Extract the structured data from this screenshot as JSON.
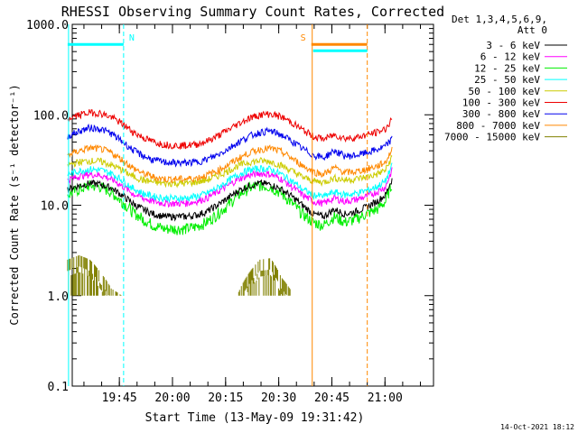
{
  "chart_data": {
    "type": "line",
    "title": "RHESSI Observing Summary Count Rates, Corrected",
    "xlabel": "Start Time (13-May-09 19:31:42)",
    "ylabel": "Corrected Count Rate (s⁻¹ detector⁻¹)",
    "yscale": "log",
    "ylim": [
      0.1,
      1000
    ],
    "xlim_min": [
      0,
      102
    ],
    "xlim_labels": [
      "19:31:42",
      "21:13:42"
    ],
    "xticks": [
      {
        "min": 13.3,
        "label": "19:45"
      },
      {
        "min": 28.3,
        "label": "20:00"
      },
      {
        "min": 43.3,
        "label": "20:15"
      },
      {
        "min": 58.3,
        "label": "20:30"
      },
      {
        "min": 73.3,
        "label": "20:45"
      },
      {
        "min": 88.3,
        "label": "21:00"
      }
    ],
    "yticks": [
      {
        "value": 1000,
        "label": "1000.0"
      },
      {
        "value": 100,
        "label": "100.0"
      },
      {
        "value": 10,
        "label": "10.0"
      },
      {
        "value": 1,
        "label": "1.0"
      },
      {
        "value": 0.1,
        "label": "0.1"
      }
    ],
    "legend_header": [
      "Det 1,3,4,5,6,9,",
      "Att 0"
    ],
    "legend_position": "right",
    "time_min": [
      -1.3,
      2,
      5,
      8,
      11,
      14,
      17,
      20,
      23,
      26,
      29,
      32,
      35,
      38,
      41,
      44,
      47,
      50,
      53,
      56,
      59,
      62,
      65,
      68,
      71,
      74,
      77,
      80,
      83,
      86,
      88.5,
      90.5
    ],
    "series": [
      {
        "name": "3 - 6 keV",
        "color": "#000000",
        "values": [
          15,
          16.5,
          17.5,
          17,
          15.5,
          13,
          10.5,
          9,
          8,
          7.5,
          7.5,
          7.5,
          7.8,
          8.5,
          10,
          12,
          14.5,
          16.5,
          17.5,
          17,
          15,
          12.5,
          10,
          8,
          7.5,
          9,
          8,
          8.5,
          9.5,
          11,
          13,
          20
        ]
      },
      {
        "name": "6 - 12 keV",
        "color": "#ff00ff",
        "values": [
          19,
          21,
          22,
          21.5,
          19.5,
          16.5,
          13.5,
          12,
          11,
          10.5,
          10.5,
          10.5,
          11,
          12,
          14,
          16.5,
          19.5,
          21.5,
          22.5,
          22,
          19.5,
          16,
          13,
          11,
          10.5,
          12,
          11,
          11.5,
          12.5,
          14,
          16,
          25
        ]
      },
      {
        "name": "12 - 25 keV",
        "color": "#00ee00",
        "values": [
          13,
          15,
          16.5,
          16,
          14,
          11,
          8.5,
          7,
          6,
          5.5,
          5.5,
          5.5,
          5.8,
          6.5,
          8,
          10,
          13,
          15.5,
          16.5,
          16,
          13.5,
          10.5,
          8,
          6.5,
          6,
          7.5,
          6.5,
          7,
          8,
          9,
          11,
          18
        ]
      },
      {
        "name": "25 - 50 keV",
        "color": "#00ffff",
        "values": [
          22,
          24,
          25,
          24.5,
          22.5,
          19,
          15.5,
          13.5,
          12.5,
          12,
          12,
          12,
          12.5,
          13.5,
          15.5,
          18.5,
          22,
          24.5,
          25.5,
          25,
          22,
          18.5,
          15,
          13,
          12.5,
          14,
          13,
          13.5,
          14.5,
          16,
          18.5,
          28
        ]
      },
      {
        "name": "50 - 100 keV",
        "color": "#cccc00",
        "values": [
          28,
          30,
          31,
          30.5,
          28,
          24.5,
          21,
          19,
          18,
          17.5,
          17.5,
          17.5,
          18,
          19,
          21,
          24,
          27.5,
          30,
          31,
          30.5,
          27.5,
          24,
          20.5,
          18.5,
          18,
          20,
          19,
          19.5,
          20.5,
          22,
          24.5,
          35
        ]
      },
      {
        "name": "100 - 300 keV",
        "color": "#ee0000",
        "values": [
          90,
          100,
          106,
          104,
          94,
          80,
          65,
          56,
          50,
          47,
          46,
          46,
          47,
          51,
          58,
          68,
          80,
          92,
          100,
          102,
          95,
          82,
          68,
          58,
          54,
          60,
          55,
          56,
          60,
          64,
          70,
          90
        ]
      },
      {
        "name": "300 - 800 keV",
        "color": "#0000ee",
        "values": [
          58,
          66,
          72,
          70,
          62,
          51,
          41,
          35,
          31.5,
          30,
          29.5,
          29.5,
          30,
          32,
          36,
          42,
          50,
          58,
          64,
          66,
          60,
          51,
          42,
          36,
          33.5,
          40,
          35,
          35.5,
          38,
          41,
          45,
          55
        ]
      },
      {
        "name": "800 - 7000 keV",
        "color": "#ff8800",
        "values": [
          36,
          40,
          43,
          42,
          38,
          32,
          26,
          22.5,
          20.5,
          19.5,
          19.5,
          19.5,
          20,
          21.5,
          24,
          28,
          33,
          38,
          41.5,
          42.5,
          39,
          33,
          27.5,
          23.5,
          22,
          26,
          23,
          23.5,
          25,
          27,
          30,
          42
        ]
      },
      {
        "name": "7000 - 15000 keV",
        "color": "#808000",
        "values": [
          2.5,
          2.8,
          2.5,
          1.8,
          1.2,
          1.0,
          null,
          null,
          null,
          null,
          null,
          null,
          null,
          null,
          null,
          null,
          1.1,
          1.8,
          2.5,
          2.6,
          1.6,
          1.1,
          null,
          null,
          null,
          null,
          null,
          null,
          1.0,
          null,
          null,
          null
        ]
      }
    ],
    "atten_flags": [
      {
        "label": "N",
        "start_min": -1.3,
        "end_min": 14.5,
        "color": "#00ffff",
        "value": 600
      }
    ],
    "saa_flags": [
      {
        "label": "S",
        "start_min": 67.5,
        "end_min": 83.3,
        "color": "#ff8800",
        "value": 600
      }
    ],
    "stamp": "14-Oct-2021 18:12"
  }
}
